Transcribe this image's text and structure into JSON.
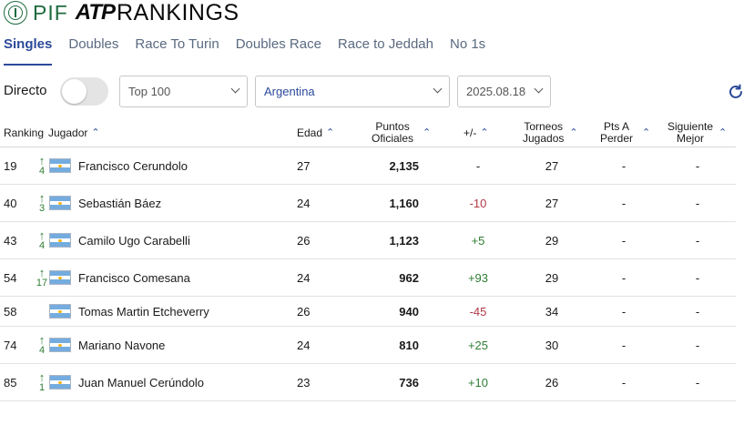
{
  "brand": {
    "pif": "PIF",
    "atp": "ATP",
    "rankings": "RANKINGS"
  },
  "tabs": [
    {
      "label": "Singles",
      "active": true
    },
    {
      "label": "Doubles",
      "active": false
    },
    {
      "label": "Race To Turin",
      "active": false
    },
    {
      "label": "Doubles Race",
      "active": false
    },
    {
      "label": "Race to Jeddah",
      "active": false
    },
    {
      "label": "No 1s",
      "active": false
    }
  ],
  "filters": {
    "directo_label": "Directo",
    "directo_on": false,
    "range": "Top 100",
    "country": "Argentina",
    "date": "2025.08.18",
    "refresh_icon": "refresh-icon"
  },
  "columns": {
    "ranking": "Ranking",
    "player": "Jugador",
    "age": "Edad",
    "points_line1": "Puntos",
    "points_line2": "Oficiales",
    "diff": "+/-",
    "tourn_line1": "Torneos",
    "tourn_line2": "Jugados",
    "drop_line1": "Pts A",
    "drop_line2": "Perder",
    "next_line1": "Siguiente",
    "next_line2": "Mejor"
  },
  "rows": [
    {
      "rank": "19",
      "move": "4",
      "name": "Francisco Cerundolo",
      "age": "27",
      "points": "2,135",
      "diff": "-",
      "diff_sign": "neu",
      "tournaments": "27",
      "drop": "-",
      "next": "-"
    },
    {
      "rank": "40",
      "move": "3",
      "name": "Sebastián Báez",
      "age": "24",
      "points": "1,160",
      "diff": "-10",
      "diff_sign": "neg",
      "tournaments": "27",
      "drop": "-",
      "next": "-"
    },
    {
      "rank": "43",
      "move": "4",
      "name": "Camilo Ugo Carabelli",
      "age": "26",
      "points": "1,123",
      "diff": "+5",
      "diff_sign": "pos",
      "tournaments": "29",
      "drop": "-",
      "next": "-"
    },
    {
      "rank": "54",
      "move": "17",
      "name": "Francisco Comesana",
      "age": "24",
      "points": "962",
      "diff": "+93",
      "diff_sign": "pos",
      "tournaments": "29",
      "drop": "-",
      "next": "-"
    },
    {
      "rank": "58",
      "move": "",
      "name": "Tomas Martin Etcheverry",
      "age": "26",
      "points": "940",
      "diff": "-45",
      "diff_sign": "neg",
      "tournaments": "34",
      "drop": "-",
      "next": "-"
    },
    {
      "rank": "74",
      "move": "4",
      "name": "Mariano Navone",
      "age": "24",
      "points": "810",
      "diff": "+25",
      "diff_sign": "pos",
      "tournaments": "30",
      "drop": "-",
      "next": "-"
    },
    {
      "rank": "85",
      "move": "1",
      "name": "Juan Manuel Cerúndolo",
      "age": "23",
      "points": "736",
      "diff": "+10",
      "diff_sign": "pos",
      "tournaments": "26",
      "drop": "-",
      "next": "-"
    }
  ]
}
